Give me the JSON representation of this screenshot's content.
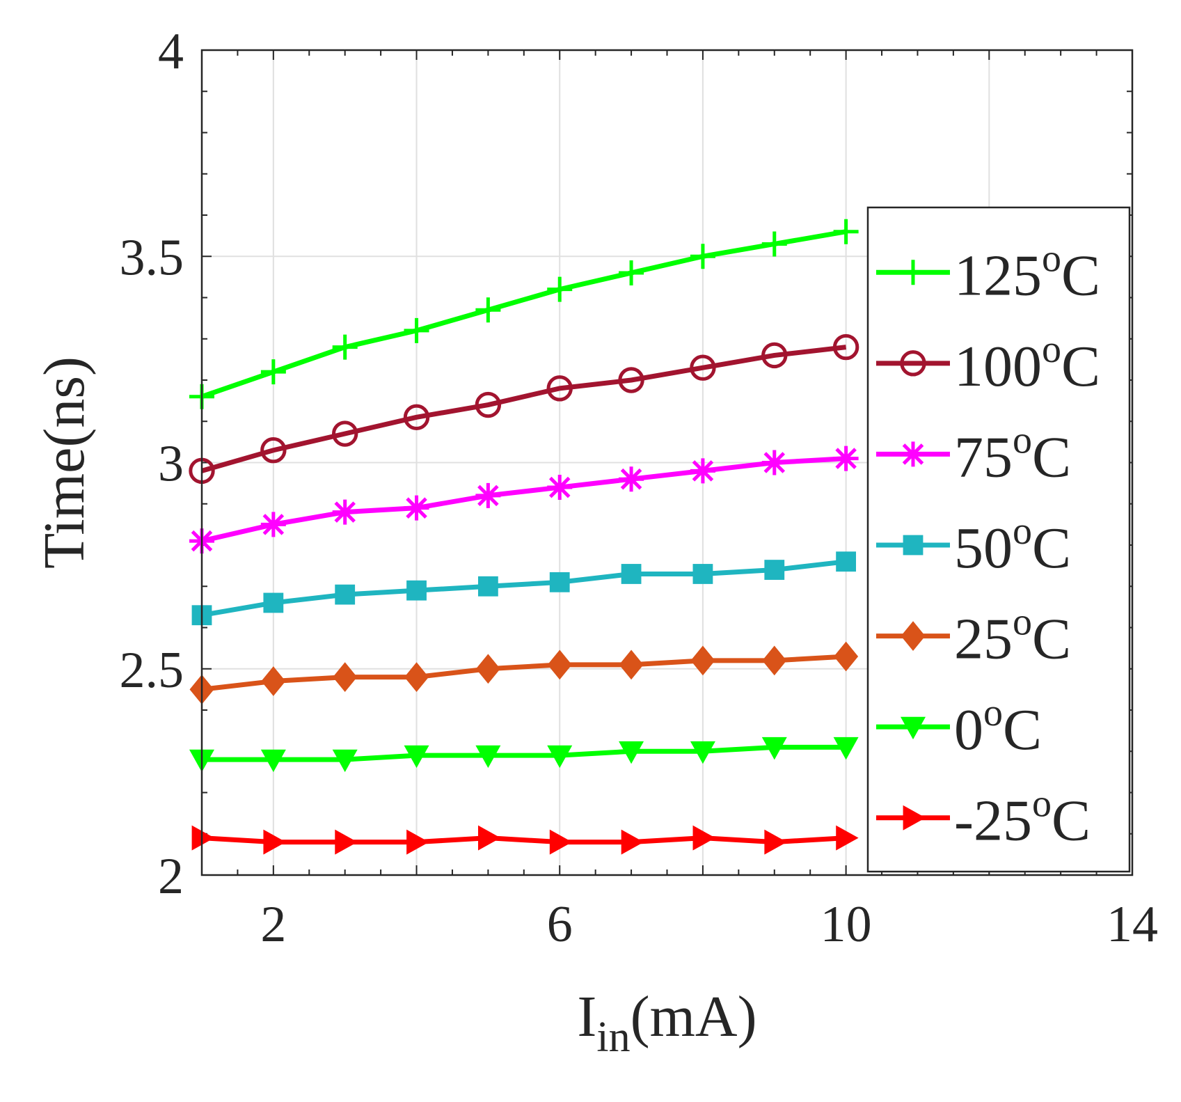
{
  "chart_data": {
    "type": "line",
    "title": "",
    "xlabel": "I",
    "xlabel_subscript": "in",
    "xlabel_unit": "(mA)",
    "ylabel": "Time(ns)",
    "xlim": [
      1,
      14
    ],
    "ylim": [
      2,
      4
    ],
    "xticks": [
      2,
      6,
      10,
      14
    ],
    "xtick_labels": [
      "2",
      "6",
      "10",
      "14"
    ],
    "yticks": [
      2,
      2.5,
      3,
      3.5,
      4
    ],
    "ytick_labels": [
      "2",
      "2.5",
      "3",
      "3.5",
      "4"
    ],
    "grid": true,
    "legend_position": "right-center",
    "legend_unit": "C",
    "legend_degree": "o",
    "x": [
      1,
      2,
      3,
      4,
      5,
      6,
      7,
      8,
      9,
      10
    ],
    "series": [
      {
        "name": "125",
        "color": "#00ff00",
        "marker": "plus",
        "values": [
          3.16,
          3.22,
          3.28,
          3.32,
          3.37,
          3.42,
          3.46,
          3.5,
          3.53,
          3.56
        ]
      },
      {
        "name": "100",
        "color": "#a2142f",
        "marker": "circle",
        "values": [
          2.98,
          3.03,
          3.07,
          3.11,
          3.14,
          3.18,
          3.2,
          3.23,
          3.26,
          3.28
        ]
      },
      {
        "name": "75",
        "color": "#ff00ff",
        "marker": "asterisk",
        "values": [
          2.81,
          2.85,
          2.88,
          2.89,
          2.92,
          2.94,
          2.96,
          2.98,
          3.0,
          3.01
        ]
      },
      {
        "name": "50",
        "color": "#1fb5c0",
        "marker": "square",
        "values": [
          2.63,
          2.66,
          2.68,
          2.69,
          2.7,
          2.71,
          2.73,
          2.73,
          2.74,
          2.76
        ]
      },
      {
        "name": "25",
        "color": "#d95319",
        "marker": "diamond",
        "values": [
          2.45,
          2.47,
          2.48,
          2.48,
          2.5,
          2.51,
          2.51,
          2.52,
          2.52,
          2.53
        ]
      },
      {
        "name": "0",
        "color": "#00ff00",
        "marker": "triangle-down",
        "values": [
          2.28,
          2.28,
          2.28,
          2.29,
          2.29,
          2.29,
          2.3,
          2.3,
          2.31,
          2.31
        ]
      },
      {
        "name": "-25",
        "color": "#ff0000",
        "marker": "triangle-right",
        "values": [
          2.09,
          2.08,
          2.08,
          2.08,
          2.09,
          2.08,
          2.08,
          2.09,
          2.08,
          2.09
        ]
      }
    ]
  }
}
